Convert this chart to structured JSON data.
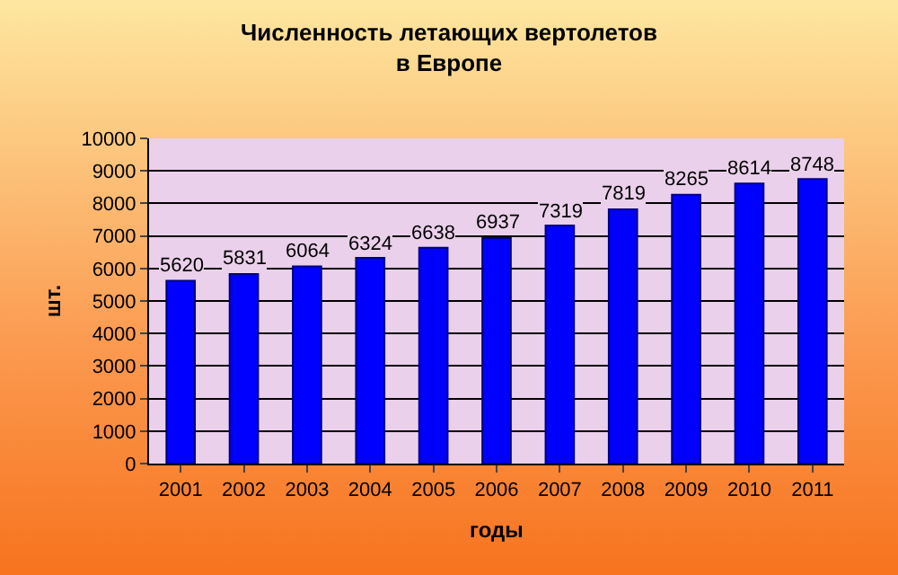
{
  "chart_data": {
    "type": "bar",
    "title": "Численность летающих вертолетов\nв Европе",
    "xlabel": "годы",
    "ylabel": "шт.",
    "categories": [
      "2001",
      "2002",
      "2003",
      "2004",
      "2005",
      "2006",
      "2007",
      "2008",
      "2009",
      "2010",
      "2011"
    ],
    "values": [
      5620,
      5831,
      6064,
      6324,
      6638,
      6937,
      7319,
      7819,
      8265,
      8614,
      8748
    ],
    "color": "#0000ff",
    "ylim": [
      0,
      10000
    ],
    "yticks": [
      0,
      1000,
      2000,
      3000,
      4000,
      5000,
      6000,
      7000,
      8000,
      9000,
      10000
    ],
    "grid": "y",
    "data_labels": true
  }
}
